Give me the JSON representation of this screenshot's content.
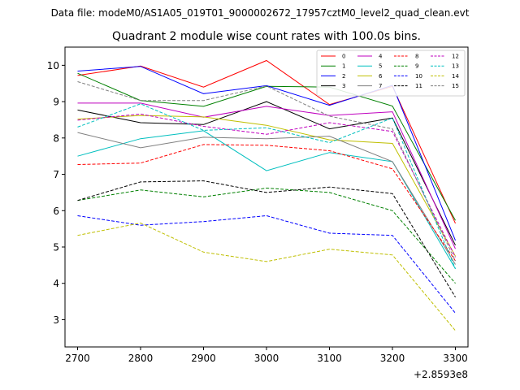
{
  "chart_data": {
    "type": "line",
    "suptitle": "Data file: modeM0/AS1A05_019T01_9000002672_17957cztM0_level2_quad_clean.evt",
    "title": "Quadrant 2 module wise count rates with 100.0s bins.",
    "xlabel": "",
    "ylabel": "",
    "x_offset_label": "+2.8593e8",
    "x": [
      2700,
      2800,
      2900,
      3000,
      3100,
      3200,
      3300
    ],
    "xlim": [
      2680,
      3320
    ],
    "ylim": [
      2.25,
      10.5
    ],
    "xticks": [
      "2700",
      "2800",
      "2900",
      "3000",
      "3100",
      "3200",
      "3300"
    ],
    "yticks": [
      "3",
      "4",
      "5",
      "6",
      "7",
      "8",
      "9",
      "10"
    ],
    "grid": false,
    "legend_placement": "upper right",
    "series": [
      {
        "name": "0",
        "color": "#ff0000",
        "dash": "solid",
        "values": [
          9.72,
          9.98,
          9.4,
          10.13,
          8.92,
          9.42,
          5.65
        ]
      },
      {
        "name": "1",
        "color": "#008000",
        "dash": "solid",
        "values": [
          9.78,
          9.03,
          8.87,
          9.42,
          9.4,
          8.88,
          5.73
        ]
      },
      {
        "name": "2",
        "color": "#0000ff",
        "dash": "solid",
        "values": [
          9.84,
          9.97,
          9.22,
          9.44,
          8.9,
          9.45,
          5.18
        ]
      },
      {
        "name": "3",
        "color": "#000000",
        "dash": "solid",
        "values": [
          8.77,
          8.42,
          8.37,
          9.0,
          8.25,
          8.55,
          5.05
        ]
      },
      {
        "name": "4",
        "color": "#bf00bf",
        "dash": "solid",
        "values": [
          8.96,
          8.96,
          8.57,
          8.87,
          8.62,
          8.72,
          4.95
        ]
      },
      {
        "name": "5",
        "color": "#00bfbf",
        "dash": "solid",
        "values": [
          7.5,
          7.98,
          8.2,
          7.1,
          7.6,
          7.35,
          4.4
        ]
      },
      {
        "name": "6",
        "color": "#bfbf00",
        "dash": "solid",
        "values": [
          8.52,
          8.62,
          8.58,
          8.35,
          7.95,
          7.85,
          4.75
        ]
      },
      {
        "name": "7",
        "color": "#808080",
        "dash": "solid",
        "values": [
          8.15,
          7.73,
          8.02,
          7.98,
          8.05,
          7.35,
          4.52
        ]
      },
      {
        "name": "8",
        "color": "#ff0000",
        "dash": "dashed",
        "values": [
          7.27,
          7.31,
          7.82,
          7.8,
          7.65,
          7.15,
          4.62
        ]
      },
      {
        "name": "9",
        "color": "#008000",
        "dash": "dashed",
        "values": [
          6.28,
          6.57,
          6.38,
          6.62,
          6.5,
          6.0,
          4.0
        ]
      },
      {
        "name": "10",
        "color": "#0000ff",
        "dash": "dashed",
        "values": [
          5.86,
          5.6,
          5.7,
          5.86,
          5.38,
          5.32,
          3.18
        ]
      },
      {
        "name": "11",
        "color": "#000000",
        "dash": "dashed",
        "values": [
          6.28,
          6.79,
          6.82,
          6.5,
          6.65,
          6.47,
          3.62
        ]
      },
      {
        "name": "12",
        "color": "#bf00bf",
        "dash": "dashed",
        "values": [
          8.49,
          8.66,
          8.32,
          8.1,
          8.42,
          8.18,
          4.72
        ]
      },
      {
        "name": "13",
        "color": "#00bfbf",
        "dash": "dashed",
        "values": [
          8.3,
          8.94,
          8.21,
          8.28,
          7.87,
          8.55,
          4.4
        ]
      },
      {
        "name": "14",
        "color": "#bfbf00",
        "dash": "dashed",
        "values": [
          5.32,
          5.66,
          4.86,
          4.6,
          4.94,
          4.78,
          2.7
        ]
      },
      {
        "name": "15",
        "color": "#808080",
        "dash": "dashed",
        "values": [
          9.55,
          9.03,
          9.03,
          9.43,
          8.6,
          8.25,
          4.62
        ]
      }
    ]
  }
}
